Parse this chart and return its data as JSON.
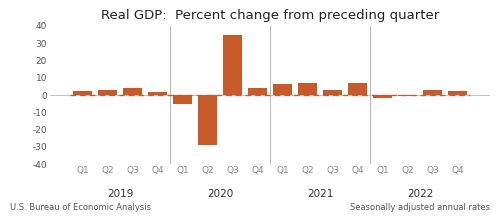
{
  "title": "Real GDP:  Percent change from preceding quarter",
  "bar_color": "#C85A2A",
  "dashed_line_color": "#C85A2A",
  "background_color": "#ffffff",
  "footer_left": "U.S. Bureau of Economic Analysis",
  "footer_right": "Seasonally adjusted annual rates",
  "ylim": [
    -40,
    40
  ],
  "yticks": [
    -40,
    -30,
    -20,
    -10,
    0,
    10,
    20,
    30,
    40
  ],
  "years": [
    "2019",
    "2020",
    "2021",
    "2022"
  ],
  "quarters": [
    "Q1",
    "Q2",
    "Q3",
    "Q4"
  ],
  "values": [
    2.5,
    3.0,
    4.0,
    2.0,
    -5.0,
    -29.0,
    35.0,
    4.0,
    6.5,
    6.7,
    3.0,
    7.0,
    -1.5,
    -0.6,
    3.2,
    2.6
  ],
  "bar_width": 0.75,
  "title_fontsize": 9.5,
  "tick_fontsize": 6.5,
  "footer_fontsize": 6.0,
  "year_label_fontsize": 7.5,
  "vline_color": "#bbbbbb",
  "zero_line_color": "#aaaaaa",
  "dashed_line_y": 0,
  "dashed_linewidth": 1.0,
  "dashed_dash": [
    4,
    3
  ]
}
